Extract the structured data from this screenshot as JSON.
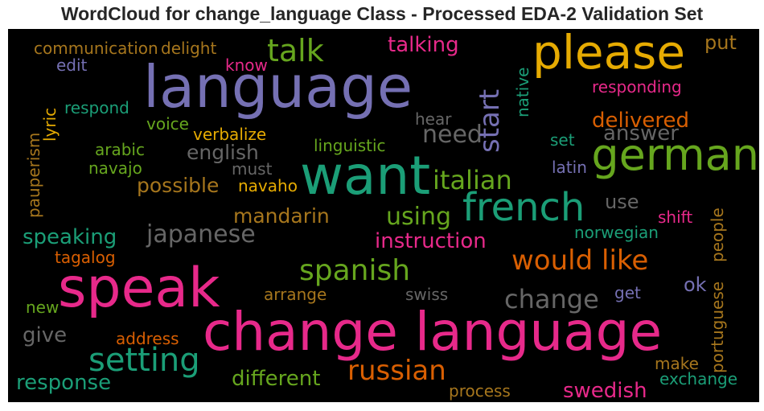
{
  "chart_data": {
    "type": "wordcloud",
    "title": "WordCloud for change_language Class - Processed EDA-2 Validation Set",
    "background": "#000000",
    "colormap": [
      "#1b9e77",
      "#d95f02",
      "#7570b3",
      "#e7298a",
      "#66a61e",
      "#e6ab02",
      "#a6761d",
      "#666666"
    ],
    "words": [
      {
        "text": "change language",
        "color": "#e7298a",
        "orientation": "horizontal"
      },
      {
        "text": "want",
        "color": "#1b9e77",
        "orientation": "horizontal"
      },
      {
        "text": "language",
        "color": "#7570b3",
        "orientation": "horizontal"
      },
      {
        "text": "speak",
        "color": "#e7298a",
        "orientation": "horizontal"
      },
      {
        "text": "please",
        "color": "#e6ab02",
        "orientation": "horizontal"
      },
      {
        "text": "german",
        "color": "#66a61e",
        "orientation": "horizontal"
      },
      {
        "text": "french",
        "color": "#1b9e77",
        "orientation": "horizontal"
      },
      {
        "text": "setting",
        "color": "#1b9e77",
        "orientation": "horizontal"
      },
      {
        "text": "would like",
        "color": "#d95f02",
        "orientation": "horizontal"
      },
      {
        "text": "spanish",
        "color": "#66a61e",
        "orientation": "horizontal"
      },
      {
        "text": "russian",
        "color": "#d95f02",
        "orientation": "horizontal"
      },
      {
        "text": "italian",
        "color": "#66a61e",
        "orientation": "horizontal"
      },
      {
        "text": "japanese",
        "color": "#666666",
        "orientation": "horizontal"
      },
      {
        "text": "talk",
        "color": "#66a61e",
        "orientation": "horizontal"
      },
      {
        "text": "change",
        "color": "#666666",
        "orientation": "horizontal"
      },
      {
        "text": "using",
        "color": "#66a61e",
        "orientation": "horizontal"
      },
      {
        "text": "need",
        "color": "#666666",
        "orientation": "horizontal"
      },
      {
        "text": "start",
        "color": "#7570b3",
        "orientation": "vertical"
      },
      {
        "text": "instruction",
        "color": "#e7298a",
        "orientation": "horizontal"
      },
      {
        "text": "different",
        "color": "#66a61e",
        "orientation": "horizontal"
      },
      {
        "text": "mandarin",
        "color": "#a6761d",
        "orientation": "horizontal"
      },
      {
        "text": "english",
        "color": "#666666",
        "orientation": "horizontal"
      },
      {
        "text": "possible",
        "color": "#a6761d",
        "orientation": "horizontal"
      },
      {
        "text": "speaking",
        "color": "#1b9e77",
        "orientation": "horizontal"
      },
      {
        "text": "response",
        "color": "#1b9e77",
        "orientation": "horizontal"
      },
      {
        "text": "swedish",
        "color": "#e7298a",
        "orientation": "horizontal"
      },
      {
        "text": "talking",
        "color": "#e7298a",
        "orientation": "horizontal"
      },
      {
        "text": "delivered",
        "color": "#d95f02",
        "orientation": "horizontal"
      },
      {
        "text": "answer",
        "color": "#666666",
        "orientation": "horizontal"
      },
      {
        "text": "give",
        "color": "#666666",
        "orientation": "horizontal"
      },
      {
        "text": "ok",
        "color": "#7570b3",
        "orientation": "horizontal"
      },
      {
        "text": "put",
        "color": "#a6761d",
        "orientation": "horizontal"
      },
      {
        "text": "use",
        "color": "#666666",
        "orientation": "horizontal"
      },
      {
        "text": "responding",
        "color": "#e7298a",
        "orientation": "horizontal"
      },
      {
        "text": "portuguese",
        "color": "#a6761d",
        "orientation": "vertical"
      },
      {
        "text": "people",
        "color": "#a6761d",
        "orientation": "vertical"
      },
      {
        "text": "native",
        "color": "#1b9e77",
        "orientation": "vertical"
      },
      {
        "text": "communication",
        "color": "#a6761d",
        "orientation": "horizontal"
      },
      {
        "text": "delight",
        "color": "#a6761d",
        "orientation": "horizontal"
      },
      {
        "text": "edit",
        "color": "#7570b3",
        "orientation": "horizontal"
      },
      {
        "text": "know",
        "color": "#e7298a",
        "orientation": "horizontal"
      },
      {
        "text": "respond",
        "color": "#1b9e77",
        "orientation": "horizontal"
      },
      {
        "text": "lyric",
        "color": "#e6ab02",
        "orientation": "vertical"
      },
      {
        "text": "voice",
        "color": "#66a61e",
        "orientation": "horizontal"
      },
      {
        "text": "hear",
        "color": "#666666",
        "orientation": "horizontal"
      },
      {
        "text": "pauperism",
        "color": "#a6761d",
        "orientation": "vertical"
      },
      {
        "text": "verbalize",
        "color": "#e6ab02",
        "orientation": "horizontal"
      },
      {
        "text": "linguistic",
        "color": "#66a61e",
        "orientation": "horizontal"
      },
      {
        "text": "set",
        "color": "#1b9e77",
        "orientation": "horizontal"
      },
      {
        "text": "arabic",
        "color": "#66a61e",
        "orientation": "horizontal"
      },
      {
        "text": "navajo",
        "color": "#66a61e",
        "orientation": "horizontal"
      },
      {
        "text": "must",
        "color": "#666666",
        "orientation": "horizontal"
      },
      {
        "text": "latin",
        "color": "#7570b3",
        "orientation": "horizontal"
      },
      {
        "text": "navaho",
        "color": "#e6ab02",
        "orientation": "horizontal"
      },
      {
        "text": "shift",
        "color": "#e7298a",
        "orientation": "horizontal"
      },
      {
        "text": "norwegian",
        "color": "#1b9e77",
        "orientation": "horizontal"
      },
      {
        "text": "tagalog",
        "color": "#d95f02",
        "orientation": "horizontal"
      },
      {
        "text": "arrange",
        "color": "#a6761d",
        "orientation": "horizontal"
      },
      {
        "text": "swiss",
        "color": "#666666",
        "orientation": "horizontal"
      },
      {
        "text": "get",
        "color": "#7570b3",
        "orientation": "horizontal"
      },
      {
        "text": "new",
        "color": "#66a61e",
        "orientation": "horizontal"
      },
      {
        "text": "address",
        "color": "#d95f02",
        "orientation": "horizontal"
      },
      {
        "text": "make",
        "color": "#a6761d",
        "orientation": "horizontal"
      },
      {
        "text": "exchange",
        "color": "#1b9e77",
        "orientation": "horizontal"
      },
      {
        "text": "process",
        "color": "#a6761d",
        "orientation": "horizontal"
      }
    ]
  }
}
